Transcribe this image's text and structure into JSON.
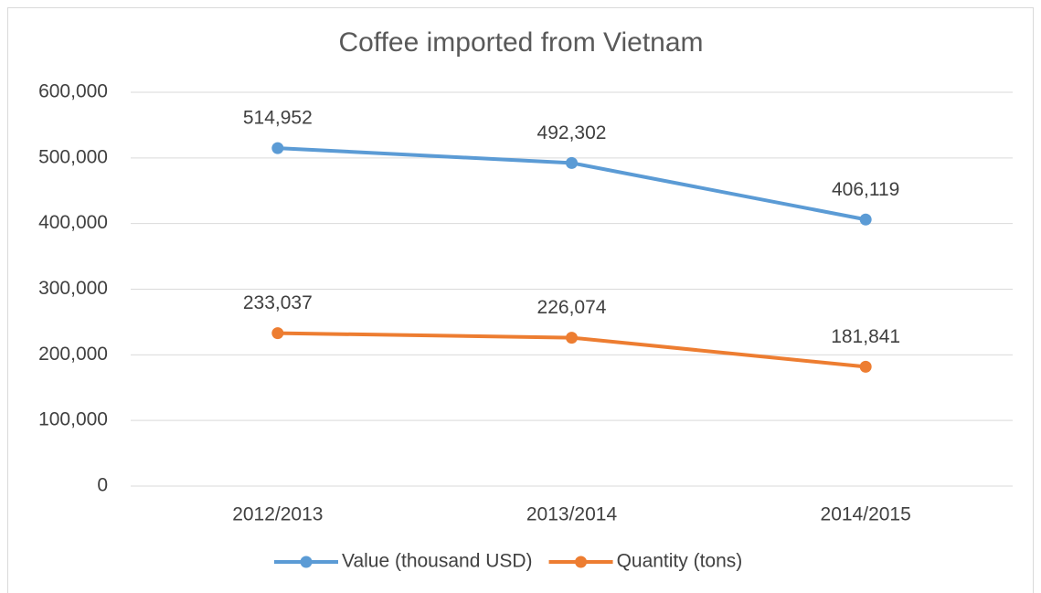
{
  "chart_data": {
    "type": "line",
    "title": "Coffee imported from Vietnam",
    "categories": [
      "2012/2013",
      "2013/2014",
      "2014/2015"
    ],
    "series": [
      {
        "name": "Value (thousand USD)",
        "color": "#5b9bd5",
        "values": [
          514952,
          492302,
          406119
        ],
        "value_labels": [
          "514,952",
          "492,302",
          "406,119"
        ]
      },
      {
        "name": "Quantity (tons)",
        "color": "#ed7d31",
        "values": [
          233037,
          226074,
          181841
        ],
        "value_labels": [
          "233,037",
          "226,074",
          "181,841"
        ]
      }
    ],
    "ylim": [
      0,
      600000
    ],
    "yticks": [
      0,
      {
        "value": 100000,
        "label": "100,000"
      },
      {
        "value": 200000,
        "label": "200,000"
      },
      {
        "value": 300000,
        "label": "300,000"
      },
      {
        "value": 400000,
        "label": "400,000"
      },
      {
        "value": 500000,
        "label": "500,000"
      },
      {
        "value": 600000,
        "label": "600,000"
      }
    ],
    "grid": true,
    "legend": "bottom"
  }
}
